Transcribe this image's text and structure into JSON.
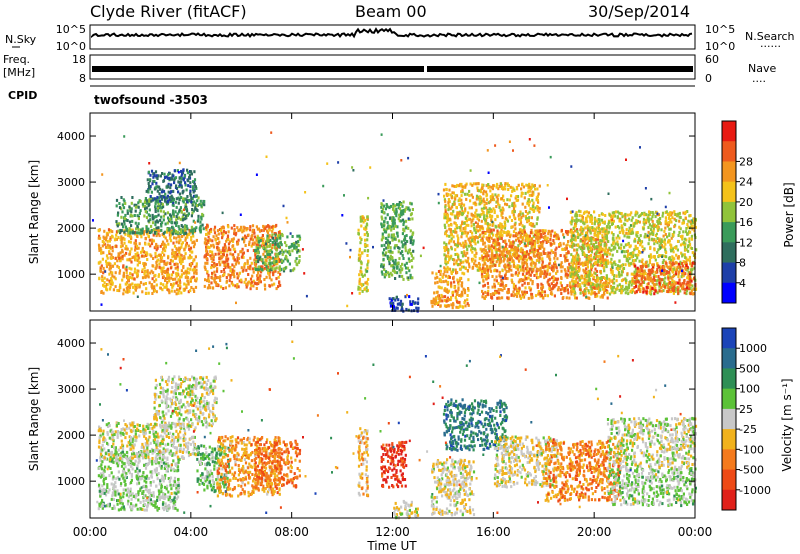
{
  "header": {
    "station": "Clyde River (fitACF)",
    "beam": "Beam 00",
    "date": "30/Sep/2014"
  },
  "strips": {
    "nsky": {
      "left_label": "N.Sky",
      "left_ticks": [
        "10^5",
        "10^0"
      ],
      "right_ticks": [
        "10^5",
        "10^0"
      ],
      "right_label": "N.Search",
      "right_style": "......"
    },
    "freq": {
      "left_label_1": "Freq.",
      "left_label_2": "[MHz]",
      "left_ticks": [
        "18",
        "8"
      ],
      "right_ticks": [
        "60",
        "0"
      ],
      "right_label": "Nave",
      "right_style": "...."
    },
    "cpid": {
      "label": "CPID",
      "value": "twofsound -3503"
    }
  },
  "chart_data": [
    {
      "type": "heatmap",
      "title": "",
      "ylabel": "Slant Range [km]",
      "ylim": [
        200,
        4500
      ],
      "xlim": [
        0,
        24
      ],
      "yticks": [
        "1000",
        "2000",
        "3000",
        "4000"
      ],
      "colorbar": {
        "label": "Power [dB]",
        "ticks": [
          "4",
          "8",
          "12",
          "16",
          "20",
          "24",
          "28"
        ],
        "colors": [
          "#0000ff",
          "#1e3fa8",
          "#2f6e5e",
          "#3a9b5a",
          "#90c33a",
          "#f4c21a",
          "#f3951f",
          "#ee5a1e",
          "#e81a12"
        ],
        "range": [
          0,
          32
        ]
      },
      "clusters": [
        {
          "t0": 0.3,
          "t1": 4.2,
          "r0": 600,
          "r1": 2000,
          "value": 22
        },
        {
          "t0": 1.0,
          "t1": 4.5,
          "r0": 1900,
          "r1": 2700,
          "value": 12
        },
        {
          "t0": 2.2,
          "t1": 4.2,
          "r0": 2600,
          "r1": 3300,
          "value": 8
        },
        {
          "t0": 4.5,
          "t1": 7.5,
          "r0": 700,
          "r1": 2100,
          "value": 24
        },
        {
          "t0": 6.5,
          "t1": 8.3,
          "r0": 1100,
          "r1": 1900,
          "value": 14
        },
        {
          "t0": 10.6,
          "t1": 11.0,
          "r0": 600,
          "r1": 2300,
          "value": 18
        },
        {
          "t0": 11.5,
          "t1": 12.8,
          "r0": 900,
          "r1": 2600,
          "value": 14
        },
        {
          "t0": 11.8,
          "t1": 13.0,
          "r0": 220,
          "r1": 550,
          "value": 6
        },
        {
          "t0": 13.5,
          "t1": 15.0,
          "r0": 300,
          "r1": 1100,
          "value": 22
        },
        {
          "t0": 14.0,
          "t1": 17.8,
          "r0": 1100,
          "r1": 3000,
          "value": 20
        },
        {
          "t0": 15.5,
          "t1": 20.5,
          "r0": 500,
          "r1": 2000,
          "value": 24
        },
        {
          "t0": 19.0,
          "t1": 24.0,
          "r0": 600,
          "r1": 2400,
          "value": 18
        },
        {
          "t0": 21.5,
          "t1": 24.0,
          "r0": 600,
          "r1": 1300,
          "value": 26
        }
      ]
    },
    {
      "type": "heatmap",
      "title": "",
      "ylabel": "Slant Range [km]",
      "ylim": [
        200,
        4500
      ],
      "xlim": [
        0,
        24
      ],
      "yticks": [
        "1000",
        "2000",
        "3000",
        "4000"
      ],
      "colorbar": {
        "label": "Velocity [m s⁻¹]",
        "ticks": [
          "1000",
          "500",
          "100",
          "25",
          "-25",
          "-100",
          "-500",
          "-1000"
        ],
        "colors": [
          "#1b44b8",
          "#2a6c8e",
          "#2e8f55",
          "#5cc238",
          "#c8c8c8",
          "#f1b21c",
          "#f47a1c",
          "#ee4a16",
          "#e0201a"
        ],
        "range": [
          -1200,
          1200
        ]
      },
      "clusters": [
        {
          "t0": 0.3,
          "t1": 3.5,
          "r0": 400,
          "r1": 1700,
          "value": 150
        },
        {
          "t0": 0.3,
          "t1": 4.2,
          "r0": 1500,
          "r1": 2300,
          "value": 0
        },
        {
          "t0": 2.5,
          "t1": 5.0,
          "r0": 2200,
          "r1": 3300,
          "value": 0
        },
        {
          "t0": 4.2,
          "t1": 5.5,
          "r0": 800,
          "r1": 1800,
          "value": 300
        },
        {
          "t0": 5.0,
          "t1": 7.5,
          "r0": 700,
          "r1": 2000,
          "value": -400
        },
        {
          "t0": 6.5,
          "t1": 8.3,
          "r0": 900,
          "r1": 1900,
          "value": -600
        },
        {
          "t0": 10.6,
          "t1": 11.0,
          "r0": 700,
          "r1": 2200,
          "value": -300
        },
        {
          "t0": 11.5,
          "t1": 12.5,
          "r0": 900,
          "r1": 1900,
          "value": -900
        },
        {
          "t0": 12.0,
          "t1": 13.0,
          "r0": 220,
          "r1": 600,
          "value": -80
        },
        {
          "t0": 13.5,
          "t1": 15.2,
          "r0": 300,
          "r1": 1500,
          "value": -80
        },
        {
          "t0": 14.0,
          "t1": 16.5,
          "r0": 1700,
          "r1": 2800,
          "value": 700
        },
        {
          "t0": 16.0,
          "t1": 18.5,
          "r0": 900,
          "r1": 2000,
          "value": -80
        },
        {
          "t0": 18.0,
          "t1": 21.0,
          "r0": 600,
          "r1": 1900,
          "value": -500
        },
        {
          "t0": 20.5,
          "t1": 24.0,
          "r0": 1300,
          "r1": 2400,
          "value": 0
        },
        {
          "t0": 20.5,
          "t1": 24.0,
          "r0": 500,
          "r1": 1300,
          "value": 150
        }
      ]
    }
  ],
  "time_axis": {
    "label": "Time UT",
    "ticks": [
      "00:00",
      "04:00",
      "08:00",
      "12:00",
      "16:00",
      "20:00",
      "00:00"
    ]
  }
}
